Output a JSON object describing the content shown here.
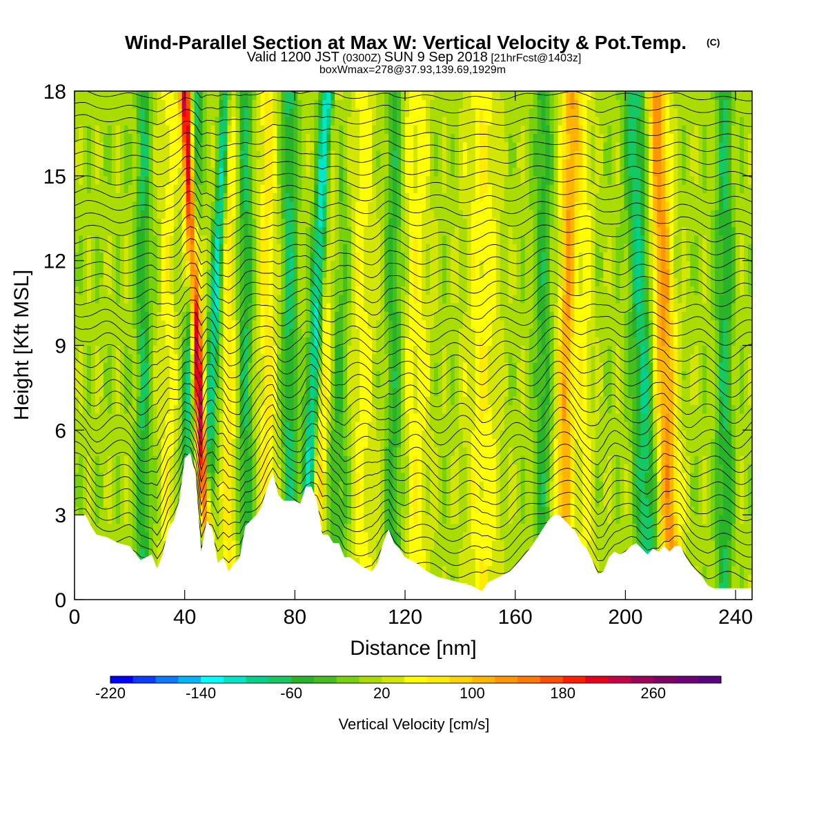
{
  "chart_data": {
    "type": "heatmap",
    "title": "Wind-Parallel Section at Max W: Vertical Velocity & Pot.Temp.",
    "title_mark": "(C)",
    "subtitle_parts": {
      "a": "Valid 1200 JST",
      "b": "(0300Z)",
      "c": "SUN 9 Sep 2018",
      "d": "[21hrFcst@1403z]"
    },
    "subtitle2": "boxWmax=278@37.93,139.69,1929m",
    "xlabel": "Distance [nm]",
    "ylabel": "Height [Kft MSL]",
    "xlim": [
      0,
      246
    ],
    "ylim": [
      0,
      18
    ],
    "xticks": [
      0,
      40,
      80,
      120,
      160,
      200,
      240
    ],
    "yticks": [
      0,
      3,
      6,
      9,
      12,
      15,
      18
    ],
    "colorbar": {
      "label": "Vertical Velocity [cm/s]",
      "tick_labels": [
        -220,
        -140,
        -60,
        20,
        100,
        180,
        260
      ],
      "colors": [
        "#0000ff",
        "#0a3cff",
        "#0a7aff",
        "#00b4ff",
        "#00ffff",
        "#00e6c8",
        "#00d28c",
        "#14c864",
        "#28b428",
        "#46be1e",
        "#78d20a",
        "#aadc00",
        "#d2e600",
        "#ffff00",
        "#ffeb00",
        "#ffd200",
        "#ffb400",
        "#ff9600",
        "#ff7800",
        "#ff5000",
        "#ff1e00",
        "#e6001e",
        "#c80046",
        "#a0005a",
        "#820064",
        "#6e0078",
        "#5a0082"
      ]
    },
    "terrain_kft": [
      [
        0,
        3.0
      ],
      [
        4,
        3.0
      ],
      [
        6,
        2.6
      ],
      [
        8,
        2.3
      ],
      [
        12,
        2.2
      ],
      [
        16,
        2.0
      ],
      [
        20,
        1.9
      ],
      [
        24,
        1.4
      ],
      [
        28,
        1.6
      ],
      [
        30,
        1.1
      ],
      [
        32,
        1.6
      ],
      [
        34,
        2.5
      ],
      [
        36,
        2.8
      ],
      [
        38,
        3.5
      ],
      [
        40,
        5.0
      ],
      [
        42,
        5.2
      ],
      [
        44,
        4.4
      ],
      [
        46,
        1.7
      ],
      [
        48,
        2.8
      ],
      [
        50,
        2.5
      ],
      [
        52,
        1.3
      ],
      [
        54,
        1.5
      ],
      [
        56,
        1.0
      ],
      [
        58,
        1.3
      ],
      [
        60,
        1.5
      ],
      [
        62,
        2.6
      ],
      [
        64,
        2.8
      ],
      [
        66,
        3.0
      ],
      [
        68,
        3.3
      ],
      [
        70,
        4.0
      ],
      [
        72,
        4.5
      ],
      [
        74,
        3.7
      ],
      [
        76,
        3.5
      ],
      [
        80,
        3.5
      ],
      [
        82,
        3.4
      ],
      [
        84,
        4.0
      ],
      [
        86,
        4.0
      ],
      [
        88,
        3.5
      ],
      [
        90,
        2.3
      ],
      [
        92,
        2.3
      ],
      [
        94,
        2.0
      ],
      [
        96,
        2.0
      ],
      [
        98,
        1.5
      ],
      [
        100,
        1.5
      ],
      [
        104,
        1.2
      ],
      [
        108,
        1.0
      ],
      [
        110,
        1.3
      ],
      [
        112,
        2.0
      ],
      [
        114,
        2.5
      ],
      [
        116,
        2.0
      ],
      [
        118,
        1.8
      ],
      [
        120,
        1.5
      ],
      [
        124,
        1.3
      ],
      [
        128,
        1.0
      ],
      [
        132,
        0.8
      ],
      [
        136,
        0.7
      ],
      [
        140,
        0.6
      ],
      [
        144,
        0.5
      ],
      [
        148,
        0.3
      ],
      [
        150,
        0.6
      ],
      [
        154,
        0.8
      ],
      [
        158,
        1.0
      ],
      [
        162,
        1.4
      ],
      [
        166,
        1.9
      ],
      [
        170,
        2.5
      ],
      [
        172,
        2.8
      ],
      [
        174,
        3.0
      ],
      [
        176,
        3.0
      ],
      [
        178,
        2.8
      ],
      [
        180,
        2.6
      ],
      [
        182,
        2.4
      ],
      [
        184,
        2.0
      ],
      [
        186,
        1.8
      ],
      [
        188,
        1.4
      ],
      [
        190,
        0.9
      ],
      [
        192,
        1.0
      ],
      [
        194,
        1.5
      ],
      [
        196,
        1.7
      ],
      [
        198,
        1.6
      ],
      [
        200,
        1.7
      ],
      [
        202,
        1.9
      ],
      [
        204,
        2.0
      ],
      [
        206,
        1.8
      ],
      [
        208,
        1.6
      ],
      [
        210,
        1.8
      ],
      [
        212,
        1.7
      ],
      [
        214,
        1.9
      ],
      [
        216,
        1.7
      ],
      [
        218,
        1.9
      ],
      [
        220,
        1.9
      ],
      [
        222,
        1.5
      ],
      [
        224,
        1.2
      ],
      [
        226,
        1.0
      ],
      [
        228,
        0.8
      ],
      [
        230,
        0.5
      ],
      [
        232,
        0.4
      ],
      [
        234,
        0.4
      ],
      [
        238,
        0.4
      ],
      [
        242,
        0.4
      ],
      [
        246,
        0.4
      ]
    ],
    "updrafts": [
      {
        "x": 46,
        "w": 2.0,
        "amp": 230,
        "tilt": -0.5
      },
      {
        "x": 25,
        "w": 2.5,
        "amp": -70,
        "tilt": 0.0
      },
      {
        "x": 34,
        "w": 3.0,
        "amp": 40,
        "tilt": 0.0
      },
      {
        "x": 41,
        "w": 2.0,
        "amp": -90,
        "tilt": 0.3
      },
      {
        "x": 49,
        "w": 2.0,
        "amp": -120,
        "tilt": 0.5
      },
      {
        "x": 56,
        "w": 2.5,
        "amp": 60,
        "tilt": 0.0
      },
      {
        "x": 62,
        "w": 2.5,
        "amp": -70,
        "tilt": 0.0
      },
      {
        "x": 70,
        "w": 3.0,
        "amp": 60,
        "tilt": 0.0
      },
      {
        "x": 78,
        "w": 2.5,
        "amp": -80,
        "tilt": 0.0
      },
      {
        "x": 86,
        "w": 2.5,
        "amp": -140,
        "tilt": 0.5
      },
      {
        "x": 89,
        "w": 3.0,
        "amp": 80,
        "tilt": 0.5
      },
      {
        "x": 96,
        "w": 4.0,
        "amp": -50,
        "tilt": 0.0
      },
      {
        "x": 104,
        "w": 5.0,
        "amp": 40,
        "tilt": 0.0
      },
      {
        "x": 116,
        "w": 3.0,
        "amp": -60,
        "tilt": 0.0
      },
      {
        "x": 124,
        "w": 5.0,
        "amp": 40,
        "tilt": 0.0
      },
      {
        "x": 148,
        "w": 6.0,
        "amp": 45,
        "tilt": 0.0
      },
      {
        "x": 170,
        "w": 3.0,
        "amp": -60,
        "tilt": 0.0
      },
      {
        "x": 178,
        "w": 3.0,
        "amp": 110,
        "tilt": 0.2
      },
      {
        "x": 185,
        "w": 3.0,
        "amp": 40,
        "tilt": 0.0
      },
      {
        "x": 207,
        "w": 4.0,
        "amp": -90,
        "tilt": -0.3
      },
      {
        "x": 215,
        "w": 4.0,
        "amp": 120,
        "tilt": -0.3
      },
      {
        "x": 236,
        "w": 3.0,
        "amp": -70,
        "tilt": 0.0
      }
    ]
  }
}
